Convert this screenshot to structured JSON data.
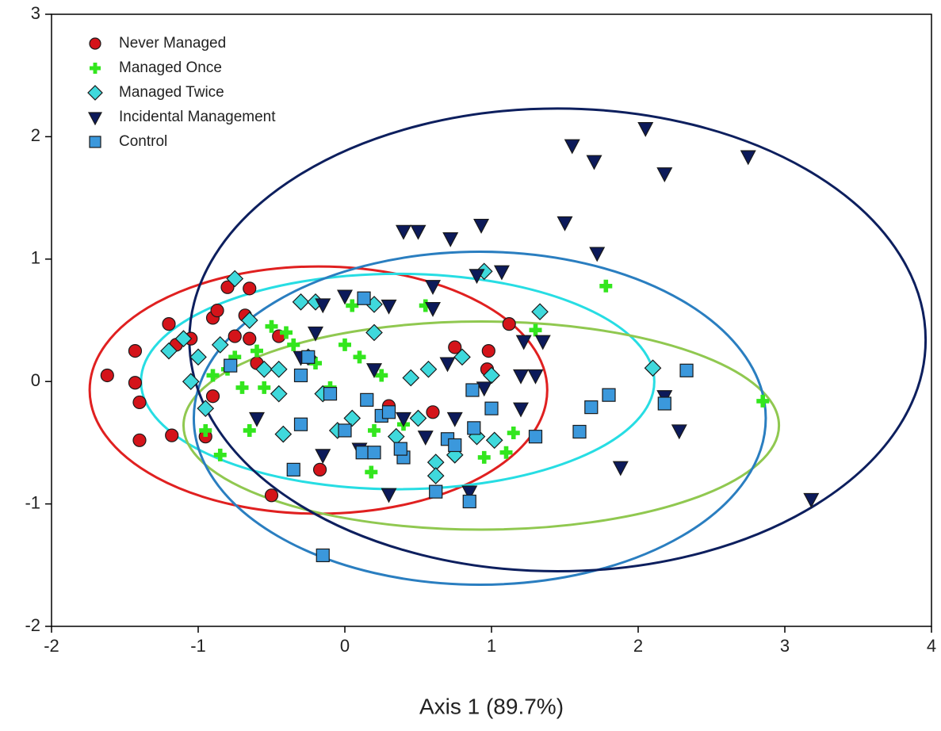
{
  "chart_data": {
    "type": "scatter",
    "xlabel": "Axis 1 (89.7%)",
    "xlim": [
      -2,
      4
    ],
    "xticks": [
      -2,
      -1,
      0,
      1,
      2,
      3,
      4
    ],
    "ylim": [
      -2,
      3
    ],
    "yticks": [
      -2,
      -1,
      0,
      1,
      2,
      3
    ],
    "grid": false,
    "legend": "upper left",
    "series": [
      {
        "name": "Never Managed",
        "color": "#d4141a",
        "marker": "circle",
        "x": [
          -1.62,
          -1.43,
          -1.43,
          -1.4,
          -1.4,
          -1.18,
          -1.2,
          -1.15,
          -1.05,
          -0.9,
          -0.87,
          -0.8,
          -0.65,
          -0.68,
          -0.75,
          -0.65,
          -0.9,
          -0.95,
          -0.5,
          -0.17,
          0.75,
          0.98,
          0.97,
          1.12,
          0.6,
          0.3,
          -0.45,
          -0.6
        ],
        "y": [
          0.05,
          0.25,
          -0.01,
          -0.17,
          -0.48,
          -0.44,
          0.47,
          0.3,
          0.35,
          0.52,
          0.58,
          0.77,
          0.76,
          0.54,
          0.37,
          0.35,
          -0.12,
          -0.45,
          -0.93,
          -0.72,
          0.28,
          0.25,
          0.1,
          0.47,
          -0.25,
          -0.2,
          0.37,
          0.15
        ]
      },
      {
        "name": "Managed Once",
        "color": "#33e61e",
        "marker": "plus",
        "x": [
          1.78,
          2.85,
          1.3,
          1.15,
          1.1,
          0.95,
          0.18,
          0.05,
          0.55,
          -0.85,
          -0.7,
          -0.6,
          -0.5,
          -0.4,
          -0.35,
          -0.2,
          0,
          0.25,
          -0.8,
          -0.9,
          -0.95,
          -0.55,
          0.4,
          0.2,
          -0.1,
          -0.3,
          -0.65,
          -0.75,
          0.1
        ],
        "y": [
          0.78,
          -0.16,
          0.42,
          -0.42,
          -0.58,
          -0.62,
          -0.74,
          0.62,
          0.62,
          -0.6,
          -0.05,
          0.25,
          0.45,
          0.4,
          0.3,
          0.15,
          0.3,
          0.05,
          0.1,
          0.05,
          -0.4,
          -0.05,
          -0.35,
          -0.4,
          -0.05,
          0.05,
          -0.4,
          0.2,
          0.2
        ]
      },
      {
        "name": "Managed Twice",
        "color": "#3fd9dc",
        "marker": "diamond",
        "x": [
          -1.2,
          -1.1,
          -1.05,
          -1.0,
          -0.95,
          -0.85,
          -0.75,
          -0.65,
          -0.55,
          -0.45,
          -0.42,
          -0.45,
          -0.3,
          -0.25,
          -0.15,
          -0.05,
          0.05,
          0.2,
          0.2,
          0.35,
          0.45,
          0.5,
          0.57,
          0.62,
          0.62,
          0.75,
          0.9,
          0.95,
          1.0,
          1.02,
          1.33,
          2.1,
          -0.2,
          0.8
        ],
        "y": [
          0.25,
          0.35,
          0.0,
          0.2,
          -0.22,
          0.3,
          0.84,
          0.5,
          0.1,
          -0.1,
          -0.43,
          0.1,
          0.65,
          0.2,
          -0.1,
          -0.4,
          -0.3,
          0.4,
          0.63,
          -0.45,
          0.03,
          -0.3,
          0.1,
          -0.66,
          -0.77,
          -0.6,
          -0.45,
          0.9,
          0.05,
          -0.48,
          0.57,
          0.11,
          0.65,
          0.2
        ]
      },
      {
        "name": "Incidental Management",
        "color": "#0c1a5a",
        "marker": "triangle-down",
        "x": [
          2.05,
          1.55,
          1.7,
          2.18,
          2.75,
          1.5,
          0.93,
          0.4,
          0.5,
          0.72,
          1.72,
          0.9,
          1.07,
          0.6,
          -0.15,
          0.0,
          0.3,
          0.6,
          1.22,
          1.35,
          1.2,
          1.3,
          2.18,
          2.28,
          1.88,
          3.18,
          0.3,
          0.85,
          -0.15,
          0.1,
          0.4,
          0.55,
          0.75,
          0.95,
          1.2,
          -0.2,
          -0.3,
          0.2,
          -0.6,
          0.7
        ],
        "y": [
          2.07,
          1.93,
          1.8,
          1.7,
          1.84,
          1.3,
          1.28,
          1.23,
          1.23,
          1.17,
          1.05,
          0.87,
          0.9,
          0.78,
          0.63,
          0.7,
          0.62,
          0.6,
          0.33,
          0.33,
          0.05,
          0.05,
          -0.12,
          -0.4,
          -0.7,
          -0.96,
          -0.92,
          -0.9,
          -0.6,
          -0.55,
          -0.3,
          -0.45,
          -0.3,
          -0.05,
          -0.22,
          0.4,
          0.2,
          0.1,
          -0.3,
          0.15
        ]
      },
      {
        "name": "Control",
        "color": "#3b98dc",
        "marker": "square",
        "x": [
          0.13,
          -0.78,
          -0.3,
          -0.1,
          0.15,
          0.25,
          -0.3,
          0.0,
          -0.35,
          -0.15,
          0.12,
          0.2,
          0.4,
          0.38,
          0.62,
          0.85,
          0.7,
          0.75,
          0.88,
          0.87,
          1.0,
          1.3,
          1.6,
          1.68,
          1.8,
          2.18,
          2.33,
          -0.25,
          0.3
        ],
        "y": [
          0.68,
          0.13,
          0.05,
          -0.1,
          -0.15,
          -0.28,
          -0.35,
          -0.4,
          -0.72,
          -1.42,
          -0.58,
          -0.58,
          -0.62,
          -0.55,
          -0.9,
          -0.98,
          -0.47,
          -0.52,
          -0.38,
          -0.07,
          -0.22,
          -0.45,
          -0.41,
          -0.21,
          -0.11,
          -0.18,
          0.09,
          0.2,
          -0.25
        ]
      }
    ],
    "ellipses": [
      {
        "color": "#e02020",
        "cx": -0.18,
        "cy": -0.07,
        "rx": 1.56,
        "ry": 1.01
      },
      {
        "color": "#27dde3",
        "cx": 0.36,
        "cy": 0.0,
        "rx": 1.75,
        "ry": 0.88
      },
      {
        "color": "#90c850",
        "cx": 0.93,
        "cy": -0.36,
        "rx": 2.03,
        "ry": 0.85
      },
      {
        "color": "#2a7ec0",
        "cx": 0.92,
        "cy": -0.3,
        "rx": 1.95,
        "ry": 1.36
      },
      {
        "color": "#0d1f5e",
        "cx": 1.45,
        "cy": 0.34,
        "rx": 2.51,
        "ry": 1.89
      }
    ]
  }
}
